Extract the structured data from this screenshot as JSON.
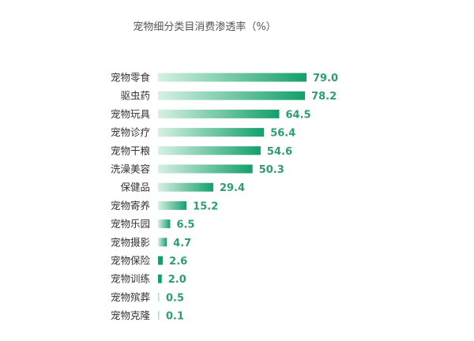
{
  "chart_data": {
    "type": "bar",
    "orientation": "horizontal",
    "title": "宠物细分类目消费渗透率（%）",
    "categories": [
      "宠物零食",
      "驱虫药",
      "宠物玩具",
      "宠物诊疗",
      "宠物干粮",
      "洗澡美容",
      "保健品",
      "宠物寄养",
      "宠物乐园",
      "宠物摄影",
      "宠物保险",
      "宠物训练",
      "宠物殡葬",
      "宠物克隆"
    ],
    "values": [
      79.0,
      78.2,
      64.5,
      56.4,
      54.6,
      50.3,
      29.4,
      15.2,
      6.5,
      4.7,
      2.6,
      2.0,
      0.5,
      0.1
    ],
    "value_labels": [
      "79.0",
      "78.2",
      "64.5",
      "56.4",
      "54.6",
      "50.3",
      "29.4",
      "15.2",
      "6.5",
      "4.7",
      "2.6",
      "2.0",
      "0.5",
      "0.1"
    ],
    "xlim": [
      0,
      79
    ],
    "grid": false,
    "legend": "none",
    "colors": {
      "bar_dark": "#14a06a",
      "bar_light": "#d7f1e4",
      "value_label": "#2f9e6e"
    }
  }
}
